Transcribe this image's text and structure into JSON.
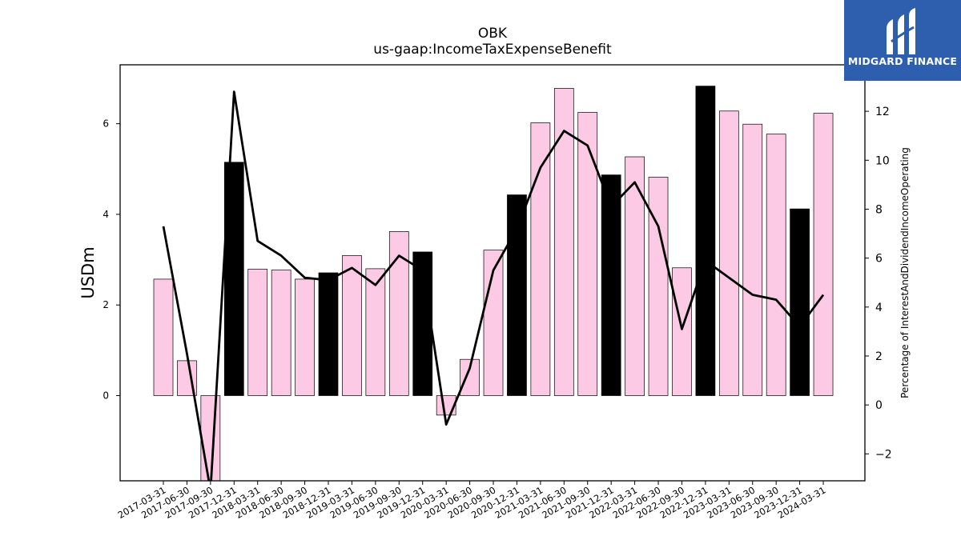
{
  "chart_data": {
    "type": "bar",
    "title": "OBK",
    "subtitle": "us-gaap:IncomeTaxExpenseBenefit",
    "ylabel": "USDm",
    "y2label": "Percentage of InterestAndDividendIncomeOperating",
    "ylim": [
      -1.88,
      7.3
    ],
    "y2lim": [
      -3.1,
      13.9
    ],
    "yticks": [
      0,
      2,
      4,
      6
    ],
    "y2ticks": [
      -2,
      0,
      2,
      4,
      6,
      8,
      10,
      12
    ],
    "categories": [
      "2017-03-31",
      "2017-06-30",
      "2017-09-30",
      "2017-12-31",
      "2018-03-31",
      "2018-06-30",
      "2018-09-30",
      "2018-12-31",
      "2019-03-31",
      "2019-06-30",
      "2019-09-30",
      "2019-12-31",
      "2020-03-31",
      "2020-06-30",
      "2020-09-30",
      "2020-12-31",
      "2021-03-31",
      "2021-06-30",
      "2021-09-30",
      "2021-12-31",
      "2022-03-31",
      "2022-06-30",
      "2022-09-30",
      "2022-12-31",
      "2023-03-31",
      "2023-06-30",
      "2023-09-30",
      "2023-12-31",
      "2024-03-31"
    ],
    "series": [
      {
        "values": [
          2.57,
          0.77,
          -1.95,
          5.15,
          2.79,
          2.77,
          2.57,
          2.71,
          3.09,
          2.8,
          3.62,
          3.17,
          -0.43,
          0.8,
          3.21,
          4.43,
          6.02,
          6.78,
          6.25,
          4.87,
          5.27,
          4.82,
          2.82,
          6.83,
          6.28,
          5.99,
          5.77,
          4.12,
          6.23
        ],
        "colors": [
          "#fccae4",
          "#fccae4",
          "#fccae4",
          "#000000",
          "#fccae4",
          "#fccae4",
          "#fccae4",
          "#000000",
          "#fccae4",
          "#fccae4",
          "#fccae4",
          "#000000",
          "#fccae4",
          "#fccae4",
          "#fccae4",
          "#000000",
          "#fccae4",
          "#fccae4",
          "#fccae4",
          "#000000",
          "#fccae4",
          "#fccae4",
          "#fccae4",
          "#000000",
          "#fccae4",
          "#fccae4",
          "#fccae4",
          "#000000",
          "#fccae4"
        ],
        "axis": "left"
      },
      {
        "type": "line",
        "color": "#000000",
        "axis": "right",
        "values": [
          7.3,
          2.1,
          -3.5,
          12.8,
          6.7,
          6.1,
          5.2,
          5.1,
          5.6,
          4.9,
          6.1,
          5.5,
          -0.8,
          1.5,
          5.5,
          7.2,
          9.7,
          11.2,
          10.6,
          8.1,
          9.1,
          7.3,
          3.1,
          5.9,
          5.2,
          4.5,
          4.3,
          3.2,
          4.5
        ]
      }
    ],
    "grid": false,
    "legend": "none"
  },
  "logo": {
    "text": "MIDGARD FINANCE",
    "color": "#2d5fae"
  }
}
